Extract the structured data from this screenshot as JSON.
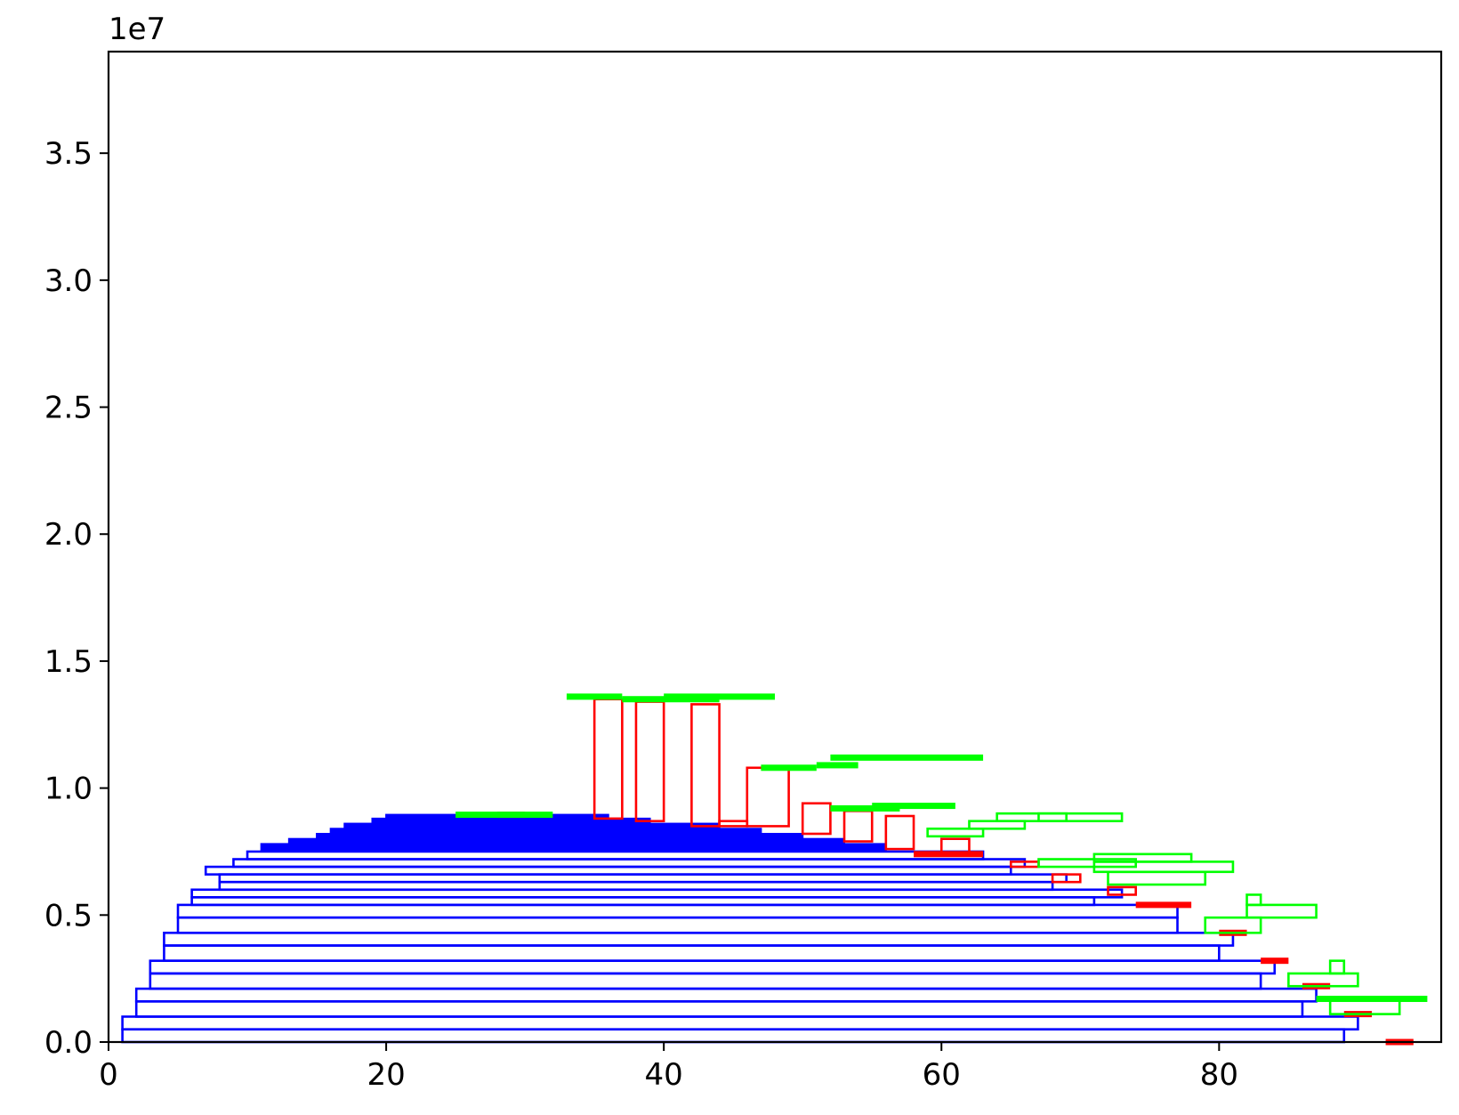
{
  "chart_data": {
    "type": "bar",
    "title": "",
    "xlabel": "",
    "ylabel": "",
    "offset_text": "1e7",
    "xlim": [
      0,
      96
    ],
    "ylim": [
      0,
      39000000
    ],
    "x_ticks": [
      {
        "value": 0,
        "label": "0"
      },
      {
        "value": 20,
        "label": "20"
      },
      {
        "value": 40,
        "label": "40"
      },
      {
        "value": 60,
        "label": "60"
      },
      {
        "value": 80,
        "label": "80"
      }
    ],
    "y_ticks": [
      {
        "value": 0,
        "label": "0.0"
      },
      {
        "value": 5000000,
        "label": "0.5"
      },
      {
        "value": 10000000,
        "label": "1.0"
      },
      {
        "value": 15000000,
        "label": "1.5"
      },
      {
        "value": 20000000,
        "label": "2.0"
      },
      {
        "value": 25000000,
        "label": "2.5"
      },
      {
        "value": 30000000,
        "label": "3.0"
      },
      {
        "value": 35000000,
        "label": "3.5"
      }
    ],
    "colors": {
      "blue": "#0000ff",
      "red": "#ff0000",
      "green": "#00ff00"
    },
    "series": [
      {
        "color": "blue",
        "boxes": [
          [
            1,
            89,
            0,
            500000
          ],
          [
            1,
            90,
            500000,
            1000000
          ],
          [
            2,
            86,
            1000000,
            1600000
          ],
          [
            2,
            87,
            1600000,
            2100000
          ],
          [
            3,
            83,
            2100000,
            2700000
          ],
          [
            3,
            84,
            2700000,
            3200000
          ],
          [
            4,
            80,
            3200000,
            3800000
          ],
          [
            4,
            81,
            3800000,
            4300000
          ],
          [
            5,
            77,
            4300000,
            4900000
          ],
          [
            5,
            77,
            4900000,
            5400000
          ],
          [
            6,
            71,
            5400000,
            5700000
          ],
          [
            6,
            73,
            5700000,
            6000000
          ],
          [
            8,
            68,
            6000000,
            6300000
          ],
          [
            8,
            69,
            6300000,
            6600000
          ],
          [
            7,
            65,
            6600000,
            6900000
          ],
          [
            9,
            66,
            6900000,
            7200000
          ],
          [
            10,
            63,
            7200000,
            7500000
          ]
        ],
        "fill_steps": [
          [
            11,
            56,
            7500000,
            7800000
          ],
          [
            13,
            53,
            7800000,
            8000000
          ],
          [
            15,
            50,
            8000000,
            8200000
          ],
          [
            16,
            47,
            8200000,
            8400000
          ],
          [
            17,
            44,
            8400000,
            8600000
          ],
          [
            19,
            39,
            8600000,
            8800000
          ],
          [
            20,
            36,
            8800000,
            8950000
          ]
        ]
      },
      {
        "color": "red",
        "boxes": [
          [
            35,
            37,
            8800000,
            13500000
          ],
          [
            38,
            40,
            8700000,
            13400000
          ],
          [
            42,
            44,
            8500000,
            13300000
          ],
          [
            44,
            46,
            8500000,
            8700000
          ],
          [
            46,
            49,
            8500000,
            10800000
          ],
          [
            50,
            52,
            8200000,
            9400000
          ],
          [
            53,
            55,
            7900000,
            9100000
          ],
          [
            56,
            58,
            7600000,
            8900000
          ],
          [
            60,
            62,
            7400000,
            8000000
          ],
          [
            65,
            67,
            6900000,
            7100000
          ],
          [
            68,
            70,
            6300000,
            6600000
          ],
          [
            72,
            74,
            5800000,
            6100000
          ]
        ],
        "segments": [
          [
            28,
            30,
            8950000
          ],
          [
            58,
            63,
            7400000
          ],
          [
            74,
            78,
            5400000
          ],
          [
            80,
            82,
            4300000
          ],
          [
            83,
            85,
            3200000
          ],
          [
            86,
            88,
            2200000
          ],
          [
            89,
            91,
            1100000
          ],
          [
            92,
            94,
            0
          ]
        ]
      },
      {
        "color": "green",
        "boxes": [
          [
            59,
            63,
            8100000,
            8400000
          ],
          [
            62,
            66,
            8400000,
            8700000
          ],
          [
            64,
            69,
            8700000,
            9000000
          ],
          [
            67,
            73,
            8700000,
            9000000
          ],
          [
            67,
            74,
            6900000,
            7200000
          ],
          [
            71,
            78,
            7100000,
            7400000
          ],
          [
            71,
            81,
            6700000,
            7100000
          ],
          [
            72,
            79,
            6200000,
            6700000
          ],
          [
            79,
            83,
            4300000,
            4900000
          ],
          [
            82,
            87,
            4900000,
            5400000
          ],
          [
            82,
            83,
            5400000,
            5800000
          ],
          [
            85,
            90,
            2200000,
            2700000
          ],
          [
            88,
            89,
            2700000,
            3200000
          ],
          [
            88,
            93,
            1100000,
            1700000
          ]
        ],
        "segments": [
          [
            25,
            32,
            8950000
          ],
          [
            33,
            37,
            13600000
          ],
          [
            37,
            44,
            13500000
          ],
          [
            40,
            48,
            13600000
          ],
          [
            47,
            51,
            10800000
          ],
          [
            51,
            54,
            10900000
          ],
          [
            52,
            63,
            11200000
          ],
          [
            52,
            57,
            9200000
          ],
          [
            55,
            61,
            9300000
          ],
          [
            87,
            95,
            1700000
          ]
        ]
      }
    ]
  }
}
